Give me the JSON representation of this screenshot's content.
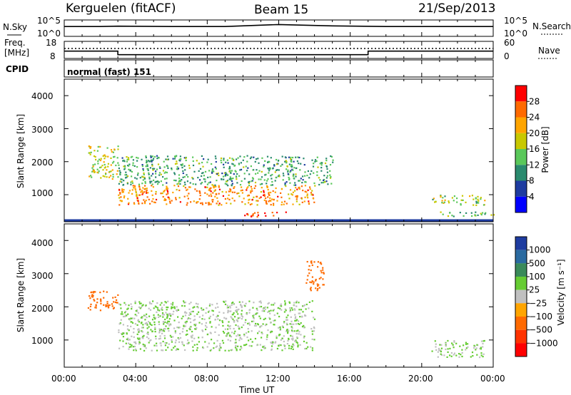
{
  "header": {
    "station": "Kerguelen (fitACF)",
    "beam": "Beam 15",
    "date": "21/Sep/2013"
  },
  "noise_panel": {
    "left_label": "N.Sky",
    "left_ticks": [
      "10^5",
      "10^0"
    ],
    "right_label": "N.Search",
    "right_ticks": [
      "10^5",
      "10^0"
    ]
  },
  "freq_panel": {
    "left_label_1": "Freq.",
    "left_label_2": "[MHz]",
    "left_ticks": [
      "18",
      "8"
    ],
    "right_label": "Nave",
    "right_ticks": [
      "60",
      "0"
    ]
  },
  "cpid_panel": {
    "label": "CPID",
    "mode_text": "normal (fast) 151"
  },
  "power_panel": {
    "ylabel": "Slant Range [km]",
    "yticks": [
      "4000",
      "3000",
      "2000",
      "1000"
    ],
    "colorbar_label": "Power [dB]",
    "colorbar_ticks": [
      "28",
      "24",
      "20",
      "16",
      "12",
      "8",
      "4"
    ],
    "colorbar_colors": [
      "#ff0000",
      "#ff6a00",
      "#ffa500",
      "#c8c800",
      "#5ac85a",
      "#2a8a6e",
      "#1e3ca0",
      "#0000ff"
    ]
  },
  "velocity_panel": {
    "ylabel": "Slant Range [km]",
    "yticks": [
      "4000",
      "3000",
      "2000",
      "1000"
    ],
    "colorbar_label": "Velocity  [m s⁻¹]",
    "colorbar_ticks": [
      "1000",
      "500",
      "100",
      "25",
      "−25",
      "−100",
      "−500",
      "−1000"
    ],
    "colorbar_colors": [
      "#1e3ca0",
      "#2a6aa0",
      "#3a8a5a",
      "#66cc33",
      "#c0c0c0",
      "#ffa500",
      "#ff6a00",
      "#ff3300",
      "#ff0000"
    ]
  },
  "xaxis": {
    "label": "Time UT",
    "ticks": [
      "00:00",
      "04:00",
      "08:00",
      "12:00",
      "16:00",
      "20:00",
      "00:00"
    ]
  },
  "chart_data": [
    {
      "type": "line",
      "title": "N.Sky / N.Search",
      "x_hours": [
        0,
        2,
        3,
        6,
        9,
        12,
        15,
        18,
        21,
        24
      ],
      "values": [
        3.0,
        3.0,
        3.1,
        3.0,
        3.0,
        3.6,
        3.2,
        3.0,
        3.0,
        3.0
      ],
      "ylim": [
        0,
        5
      ],
      "yscale": "log10"
    },
    {
      "type": "line",
      "title": "Freq. [MHz]",
      "x_hours": [
        0,
        3.0,
        3.0,
        17.0,
        17.0,
        24
      ],
      "values": [
        12.3,
        12.3,
        10.2,
        10.2,
        12.3,
        12.3
      ],
      "ylim": [
        8,
        18
      ]
    },
    {
      "type": "line",
      "title": "Nave",
      "x_hours": [
        0,
        24
      ],
      "values": [
        32,
        32
      ],
      "ylim": [
        0,
        60
      ]
    },
    {
      "type": "heatmap",
      "title": "Power [dB]",
      "xlim_hours": [
        0,
        24
      ],
      "ylim_km": [
        180,
        4500
      ],
      "echo_regions": [
        {
          "name": "main band",
          "x_hours": [
            3.0,
            14.0
          ],
          "range_km": [
            700,
            1300
          ],
          "power_db": 22
        },
        {
          "name": "ground scatter fringe",
          "x_hours": [
            3.0,
            15.0
          ],
          "range_km": [
            1300,
            2200
          ],
          "power_db": 10
        },
        {
          "name": "early patch",
          "x_hours": [
            1.3,
            3.0
          ],
          "range_km": [
            1500,
            2500
          ],
          "power_db": 16
        },
        {
          "name": "low range strip",
          "x_hours": [
            10.0,
            12.5
          ],
          "range_km": [
            350,
            500
          ],
          "power_db": 26
        },
        {
          "name": "evening patch",
          "x_hours": [
            20.5,
            23.5
          ],
          "range_km": [
            700,
            1000
          ],
          "power_db": 14
        },
        {
          "name": "evening low strip",
          "x_hours": [
            21.0,
            24.0
          ],
          "range_km": [
            350,
            500
          ],
          "power_db": 12
        }
      ]
    },
    {
      "type": "heatmap",
      "title": "Velocity [m s-1]",
      "xlim_hours": [
        0,
        24
      ],
      "ylim_km": [
        180,
        4500
      ],
      "echo_regions": [
        {
          "name": "ground scatter band",
          "x_hours": [
            3.0,
            14.0
          ],
          "range_km": [
            700,
            2200
          ],
          "velocity": 0
        },
        {
          "name": "early patch",
          "x_hours": [
            1.3,
            3.0
          ],
          "range_km": [
            1900,
            2500
          ],
          "velocity": -300
        },
        {
          "name": "late patch",
          "x_hours": [
            13.5,
            14.5
          ],
          "range_km": [
            2500,
            3400
          ],
          "velocity": -300
        },
        {
          "name": "evening patch",
          "x_hours": [
            20.5,
            23.5
          ],
          "range_km": [
            500,
            1000
          ],
          "velocity": 0
        }
      ]
    }
  ]
}
